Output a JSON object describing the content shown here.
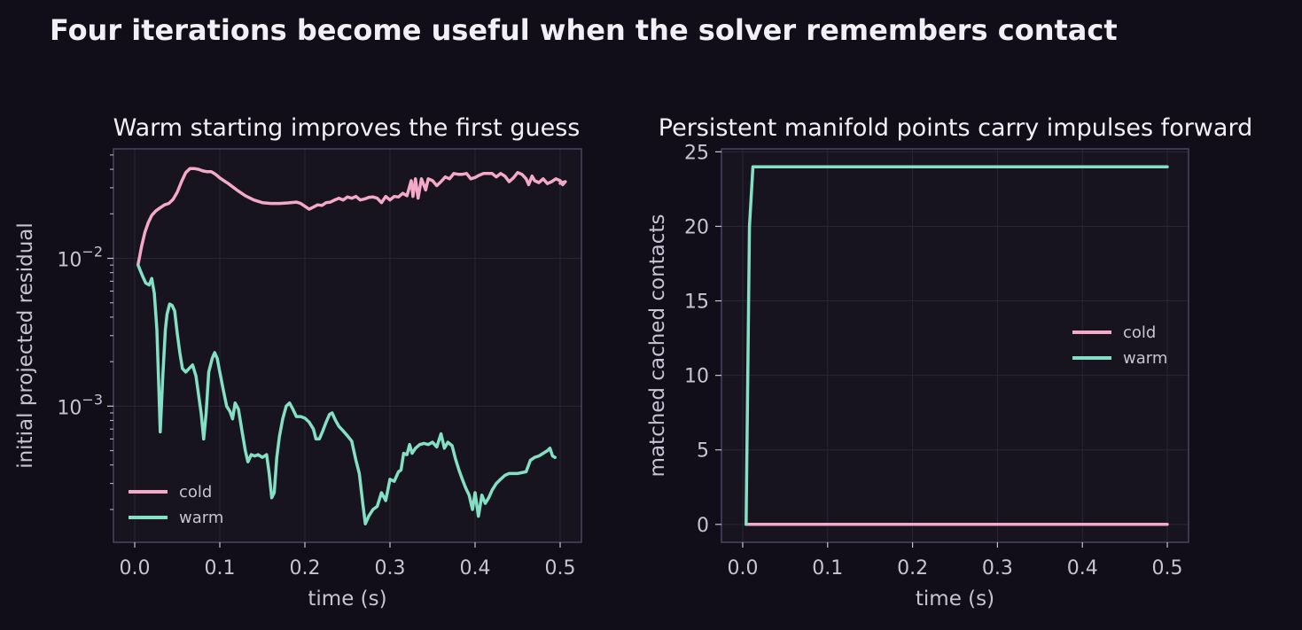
{
  "figure_title": "Four iterations become useful when the solver remembers contact",
  "colors": {
    "background": "#110e1a",
    "plot_bg": "#17141f",
    "frame": "#4a4560",
    "grid": "#2a2637",
    "text": "#f2f0f7",
    "tick_text": "#c8c3d3",
    "cold": "#f4a9c8",
    "warm": "#84e0c4"
  },
  "chart_data": [
    {
      "type": "line",
      "title": "Warm starting improves the first guess",
      "xlabel": "time (s)",
      "ylabel": "initial projected residual",
      "yscale": "log",
      "xlim": [
        -0.025,
        0.525
      ],
      "ylim": [
        0.00012,
        0.055
      ],
      "xticks": [
        0.0,
        0.1,
        0.2,
        0.3,
        0.4,
        0.5
      ],
      "xtick_labels": [
        "0.0",
        "0.1",
        "0.2",
        "0.3",
        "0.4",
        "0.5"
      ],
      "yticks": [
        0.01,
        0.001
      ],
      "ytick_labels": [
        {
          "base": "10",
          "exp": "−2"
        },
        {
          "base": "10",
          "exp": "−3"
        }
      ],
      "grid": true,
      "legend": {
        "position": "lower-left",
        "entries": [
          "cold",
          "warm"
        ]
      },
      "series": [
        {
          "name": "cold",
          "color": "#f4a9c8",
          "points": [
            [
              0.004,
              0.0091
            ],
            [
              0.008,
              0.012
            ],
            [
              0.012,
              0.015
            ],
            [
              0.016,
              0.0175
            ],
            [
              0.02,
              0.0195
            ],
            [
              0.025,
              0.021
            ],
            [
              0.03,
              0.022
            ],
            [
              0.035,
              0.023
            ],
            [
              0.04,
              0.0235
            ],
            [
              0.045,
              0.025
            ],
            [
              0.05,
              0.028
            ],
            [
              0.055,
              0.033
            ],
            [
              0.06,
              0.038
            ],
            [
              0.065,
              0.0405
            ],
            [
              0.07,
              0.0405
            ],
            [
              0.075,
              0.04
            ],
            [
              0.08,
              0.039
            ],
            [
              0.085,
              0.0385
            ],
            [
              0.09,
              0.0385
            ],
            [
              0.095,
              0.037
            ],
            [
              0.1,
              0.035
            ],
            [
              0.11,
              0.032
            ],
            [
              0.12,
              0.029
            ],
            [
              0.13,
              0.0265
            ],
            [
              0.14,
              0.0248
            ],
            [
              0.15,
              0.0238
            ],
            [
              0.16,
              0.0235
            ],
            [
              0.17,
              0.0235
            ],
            [
              0.18,
              0.0237
            ],
            [
              0.19,
              0.024
            ],
            [
              0.195,
              0.0235
            ],
            [
              0.2,
              0.0225
            ],
            [
              0.205,
              0.0215
            ],
            [
              0.21,
              0.0222
            ],
            [
              0.215,
              0.023
            ],
            [
              0.22,
              0.0228
            ],
            [
              0.225,
              0.0238
            ],
            [
              0.23,
              0.024
            ],
            [
              0.235,
              0.0248
            ],
            [
              0.24,
              0.0255
            ],
            [
              0.245,
              0.0248
            ],
            [
              0.25,
              0.026
            ],
            [
              0.255,
              0.0255
            ],
            [
              0.26,
              0.0262
            ],
            [
              0.265,
              0.0248
            ],
            [
              0.27,
              0.0252
            ],
            [
              0.275,
              0.0258
            ],
            [
              0.28,
              0.026
            ],
            [
              0.285,
              0.0255
            ],
            [
              0.29,
              0.0238
            ],
            [
              0.295,
              0.0262
            ],
            [
              0.3,
              0.0248
            ],
            [
              0.305,
              0.0262
            ],
            [
              0.31,
              0.026
            ],
            [
              0.315,
              0.0275
            ],
            [
              0.32,
              0.0265
            ],
            [
              0.325,
              0.0335
            ],
            [
              0.327,
              0.0262
            ],
            [
              0.33,
              0.0345
            ],
            [
              0.333,
              0.0255
            ],
            [
              0.337,
              0.0345
            ],
            [
              0.342,
              0.029
            ],
            [
              0.345,
              0.0345
            ],
            [
              0.35,
              0.0335
            ],
            [
              0.355,
              0.031
            ],
            [
              0.36,
              0.033
            ],
            [
              0.365,
              0.0355
            ],
            [
              0.37,
              0.0345
            ],
            [
              0.375,
              0.0375
            ],
            [
              0.38,
              0.037
            ],
            [
              0.385,
              0.037
            ],
            [
              0.39,
              0.0375
            ],
            [
              0.395,
              0.0345
            ],
            [
              0.4,
              0.0352
            ],
            [
              0.405,
              0.0365
            ],
            [
              0.41,
              0.0375
            ],
            [
              0.415,
              0.0375
            ],
            [
              0.42,
              0.0375
            ],
            [
              0.425,
              0.0355
            ],
            [
              0.43,
              0.0375
            ],
            [
              0.435,
              0.036
            ],
            [
              0.44,
              0.033
            ],
            [
              0.445,
              0.035
            ],
            [
              0.45,
              0.038
            ],
            [
              0.455,
              0.037
            ],
            [
              0.46,
              0.0345
            ],
            [
              0.463,
              0.0315
            ],
            [
              0.467,
              0.036
            ],
            [
              0.47,
              0.0335
            ],
            [
              0.475,
              0.0325
            ],
            [
              0.48,
              0.0345
            ],
            [
              0.485,
              0.032
            ],
            [
              0.49,
              0.033
            ],
            [
              0.495,
              0.0345
            ],
            [
              0.5,
              0.0335
            ],
            [
              0.503,
              0.0315
            ],
            [
              0.506,
              0.033
            ],
            [
              0.5,
              0.0322
            ]
          ]
        },
        {
          "name": "warm",
          "color": "#84e0c4",
          "points": [
            [
              0.004,
              0.009
            ],
            [
              0.006,
              0.0084
            ],
            [
              0.01,
              0.0074
            ],
            [
              0.013,
              0.0068
            ],
            [
              0.017,
              0.0066
            ],
            [
              0.02,
              0.0073
            ],
            [
              0.023,
              0.0058
            ],
            [
              0.026,
              0.0033
            ],
            [
              0.028,
              0.0015
            ],
            [
              0.03,
              0.00067
            ],
            [
              0.033,
              0.0016
            ],
            [
              0.036,
              0.0033
            ],
            [
              0.038,
              0.0042
            ],
            [
              0.041,
              0.0049
            ],
            [
              0.044,
              0.0048
            ],
            [
              0.047,
              0.0044
            ],
            [
              0.05,
              0.0031
            ],
            [
              0.053,
              0.0023
            ],
            [
              0.056,
              0.0018
            ],
            [
              0.06,
              0.0017
            ],
            [
              0.064,
              0.0018
            ],
            [
              0.068,
              0.0019
            ],
            [
              0.072,
              0.0016
            ],
            [
              0.075,
              0.0012
            ],
            [
              0.078,
              0.0009
            ],
            [
              0.081,
              0.0006
            ],
            [
              0.084,
              0.0009
            ],
            [
              0.087,
              0.0017
            ],
            [
              0.091,
              0.0021
            ],
            [
              0.094,
              0.0023
            ],
            [
              0.097,
              0.0021
            ],
            [
              0.1,
              0.0017
            ],
            [
              0.104,
              0.0013
            ],
            [
              0.108,
              0.001
            ],
            [
              0.112,
              0.00092
            ],
            [
              0.115,
              0.00082
            ],
            [
              0.118,
              0.00105
            ],
            [
              0.122,
              0.00095
            ],
            [
              0.126,
              0.00068
            ],
            [
              0.13,
              0.0005
            ],
            [
              0.133,
              0.00042
            ],
            [
              0.137,
              0.00047
            ],
            [
              0.141,
              0.00046
            ],
            [
              0.145,
              0.00047
            ],
            [
              0.15,
              0.00045
            ],
            [
              0.155,
              0.00047
            ],
            [
              0.158,
              0.00035
            ],
            [
              0.161,
              0.00024
            ],
            [
              0.164,
              0.00026
            ],
            [
              0.167,
              0.00045
            ],
            [
              0.17,
              0.00062
            ],
            [
              0.174,
              0.00082
            ],
            [
              0.178,
              0.001
            ],
            [
              0.182,
              0.00105
            ],
            [
              0.186,
              0.00095
            ],
            [
              0.19,
              0.00085
            ],
            [
              0.195,
              0.00085
            ],
            [
              0.2,
              0.00083
            ],
            [
              0.205,
              0.00078
            ],
            [
              0.21,
              0.0007
            ],
            [
              0.213,
              0.0006
            ],
            [
              0.217,
              0.0006
            ],
            [
              0.221,
              0.00068
            ],
            [
              0.225,
              0.00078
            ],
            [
              0.229,
              0.00088
            ],
            [
              0.232,
              0.0009
            ],
            [
              0.236,
              0.0008
            ],
            [
              0.24,
              0.00073
            ],
            [
              0.245,
              0.00068
            ],
            [
              0.25,
              0.00063
            ],
            [
              0.255,
              0.00058
            ],
            [
              0.26,
              0.00043
            ],
            [
              0.264,
              0.00035
            ],
            [
              0.268,
              0.00022
            ],
            [
              0.271,
              0.00016
            ],
            [
              0.275,
              0.00018
            ],
            [
              0.28,
              0.0002
            ],
            [
              0.285,
              0.00021
            ],
            [
              0.29,
              0.00026
            ],
            [
              0.295,
              0.00023
            ],
            [
              0.3,
              0.00032
            ],
            [
              0.305,
              0.00031
            ],
            [
              0.31,
              0.00036
            ],
            [
              0.313,
              0.00037
            ],
            [
              0.316,
              0.00048
            ],
            [
              0.32,
              0.00047
            ],
            [
              0.323,
              0.00055
            ],
            [
              0.326,
              0.00048
            ],
            [
              0.33,
              0.00052
            ],
            [
              0.335,
              0.00055
            ],
            [
              0.34,
              0.00056
            ],
            [
              0.345,
              0.00055
            ],
            [
              0.35,
              0.00057
            ],
            [
              0.355,
              0.00053
            ],
            [
              0.36,
              0.00065
            ],
            [
              0.364,
              0.00052
            ],
            [
              0.368,
              0.00057
            ],
            [
              0.373,
              0.00054
            ],
            [
              0.377,
              0.00044
            ],
            [
              0.381,
              0.00037
            ],
            [
              0.385,
              0.00032
            ],
            [
              0.389,
              0.00028
            ],
            [
              0.393,
              0.00025
            ],
            [
              0.397,
              0.0002
            ],
            [
              0.4,
              0.00026
            ],
            [
              0.404,
              0.00018
            ],
            [
              0.408,
              0.00025
            ],
            [
              0.412,
              0.00022
            ],
            [
              0.416,
              0.00024
            ],
            [
              0.42,
              0.00027
            ],
            [
              0.425,
              0.0003
            ],
            [
              0.43,
              0.00032
            ],
            [
              0.435,
              0.00034
            ],
            [
              0.44,
              0.00035
            ],
            [
              0.45,
              0.00035
            ],
            [
              0.46,
              0.00036
            ],
            [
              0.465,
              0.00043
            ],
            [
              0.47,
              0.00045
            ],
            [
              0.475,
              0.00046
            ],
            [
              0.48,
              0.00048
            ],
            [
              0.485,
              0.0005
            ],
            [
              0.488,
              0.00052
            ],
            [
              0.491,
              0.00046
            ],
            [
              0.494,
              0.00045
            ]
          ]
        }
      ]
    },
    {
      "type": "line",
      "title": "Persistent manifold points carry impulses forward",
      "xlabel": "time (s)",
      "ylabel": "matched cached contacts",
      "yscale": "linear",
      "xlim": [
        -0.025,
        0.525
      ],
      "ylim": [
        -1.2,
        25.2
      ],
      "xticks": [
        0.0,
        0.1,
        0.2,
        0.3,
        0.4,
        0.5
      ],
      "xtick_labels": [
        "0.0",
        "0.1",
        "0.2",
        "0.3",
        "0.4",
        "0.5"
      ],
      "yticks": [
        0,
        5,
        10,
        15,
        20,
        25
      ],
      "ytick_labels": [
        "0",
        "5",
        "10",
        "15",
        "20",
        "25"
      ],
      "grid": true,
      "legend": {
        "position": "center-right",
        "entries": [
          "cold",
          "warm"
        ]
      },
      "series": [
        {
          "name": "cold",
          "color": "#f4a9c8",
          "points": [
            [
              0.004,
              0
            ],
            [
              0.5,
              0
            ]
          ]
        },
        {
          "name": "warm",
          "color": "#84e0c4",
          "points": [
            [
              0.004,
              0
            ],
            [
              0.008,
              20
            ],
            [
              0.012,
              24
            ],
            [
              0.5,
              24
            ]
          ]
        }
      ]
    }
  ]
}
